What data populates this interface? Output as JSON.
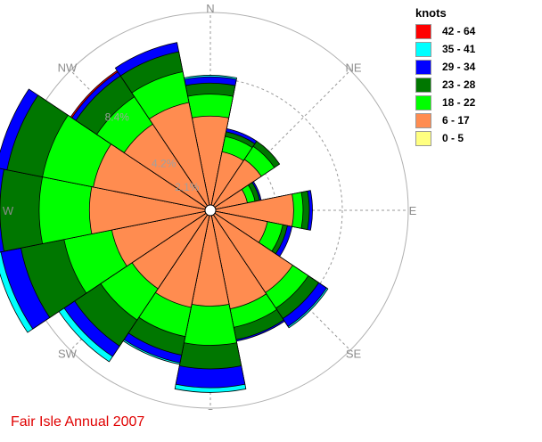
{
  "chart_data": {
    "type": "wind-rose",
    "title": "Fair Isle Annual 2007",
    "legend": {
      "title": "knots",
      "position": "top-right",
      "entries": [
        {
          "label": "42 - 64",
          "color": "#ff0000"
        },
        {
          "label": "35 - 41",
          "color": "#00ffff"
        },
        {
          "label": "29 - 34",
          "color": "#0000ff"
        },
        {
          "label": "23 - 28",
          "color": "#007700"
        },
        {
          "label": "18 - 22",
          "color": "#00ff00"
        },
        {
          "label": "6 - 17",
          "color": "#ff8c50"
        },
        {
          "label": "0 - 5",
          "color": "#ffff80"
        }
      ]
    },
    "compass_labels": [
      "N",
      "NE",
      "E",
      "SE",
      "S",
      "SW",
      "W",
      "NW"
    ],
    "ring_labels": [
      "8.4%",
      "4.2%",
      "2.1%"
    ],
    "max_percent": 12.6,
    "speed_bins": [
      "0 - 5",
      "6 - 17",
      "18 - 22",
      "23 - 28",
      "29 - 34",
      "35 - 41",
      "42 - 64"
    ],
    "directions": [
      "N",
      "NNE",
      "NE",
      "ENE",
      "E",
      "ESE",
      "SE",
      "SSE",
      "S",
      "SSW",
      "SW",
      "WSW",
      "W",
      "WNW",
      "NW",
      "NNW"
    ],
    "cumulative_percent": [
      [
        0.2,
        6.0,
        7.4,
        8.1,
        8.5,
        8.6,
        8.6
      ],
      [
        0.2,
        3.8,
        4.8,
        5.1,
        5.3,
        5.3,
        5.3
      ],
      [
        0.2,
        3.9,
        4.9,
        5.3,
        5.3,
        5.3,
        5.3
      ],
      [
        0.2,
        2.4,
        2.9,
        3.2,
        3.3,
        3.3,
        3.3
      ],
      [
        0.2,
        5.3,
        5.9,
        6.3,
        6.5,
        6.5,
        6.5
      ],
      [
        0.2,
        3.7,
        4.7,
        5.0,
        5.3,
        5.3,
        5.3
      ],
      [
        0.2,
        6.3,
        7.5,
        8.3,
        8.9,
        9.0,
        9.0
      ],
      [
        0.2,
        6.4,
        7.6,
        8.4,
        8.5,
        8.5,
        8.5
      ],
      [
        0.2,
        6.1,
        8.6,
        10.1,
        11.3,
        11.6,
        11.6
      ],
      [
        0.2,
        6.3,
        8.2,
        9.4,
        9.9,
        10.0,
        10.0
      ],
      [
        0.2,
        6.0,
        8.4,
        10.4,
        11.2,
        11.6,
        11.6
      ],
      [
        0.2,
        6.4,
        9.5,
        12.3,
        13.6,
        14.0,
        14.0
      ],
      [
        0.2,
        7.7,
        10.9,
        13.4,
        14.5,
        14.5,
        14.5
      ],
      [
        0.2,
        7.6,
        10.9,
        13.2,
        13.9,
        13.9,
        13.9
      ],
      [
        0.2,
        6.6,
        8.7,
        10.3,
        10.6,
        10.6,
        10.7
      ],
      [
        0.2,
        7.0,
        9.0,
        10.3,
        10.9,
        10.9,
        10.9
      ]
    ]
  }
}
